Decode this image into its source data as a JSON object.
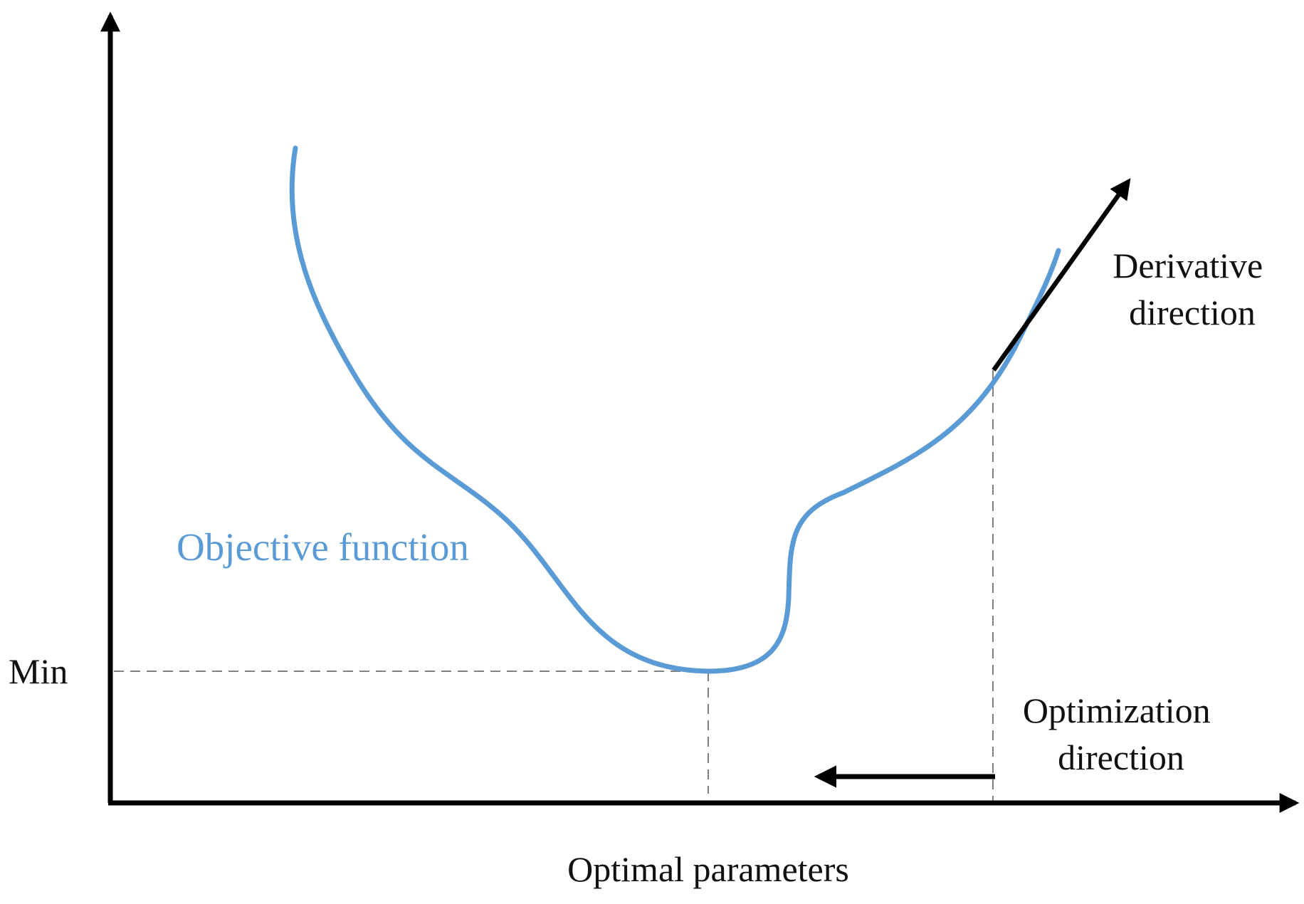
{
  "labels": {
    "curve": "Objective function",
    "min": "Min",
    "derivative_line1": "Derivative",
    "derivative_line2": "direction",
    "optimization_line1": "Optimization",
    "optimization_line2": "direction",
    "xaxis": "Optimal parameters"
  },
  "colors": {
    "curve": "#5b9bd5",
    "axis": "#000000",
    "guide": "#808080",
    "text": "#111111"
  }
}
